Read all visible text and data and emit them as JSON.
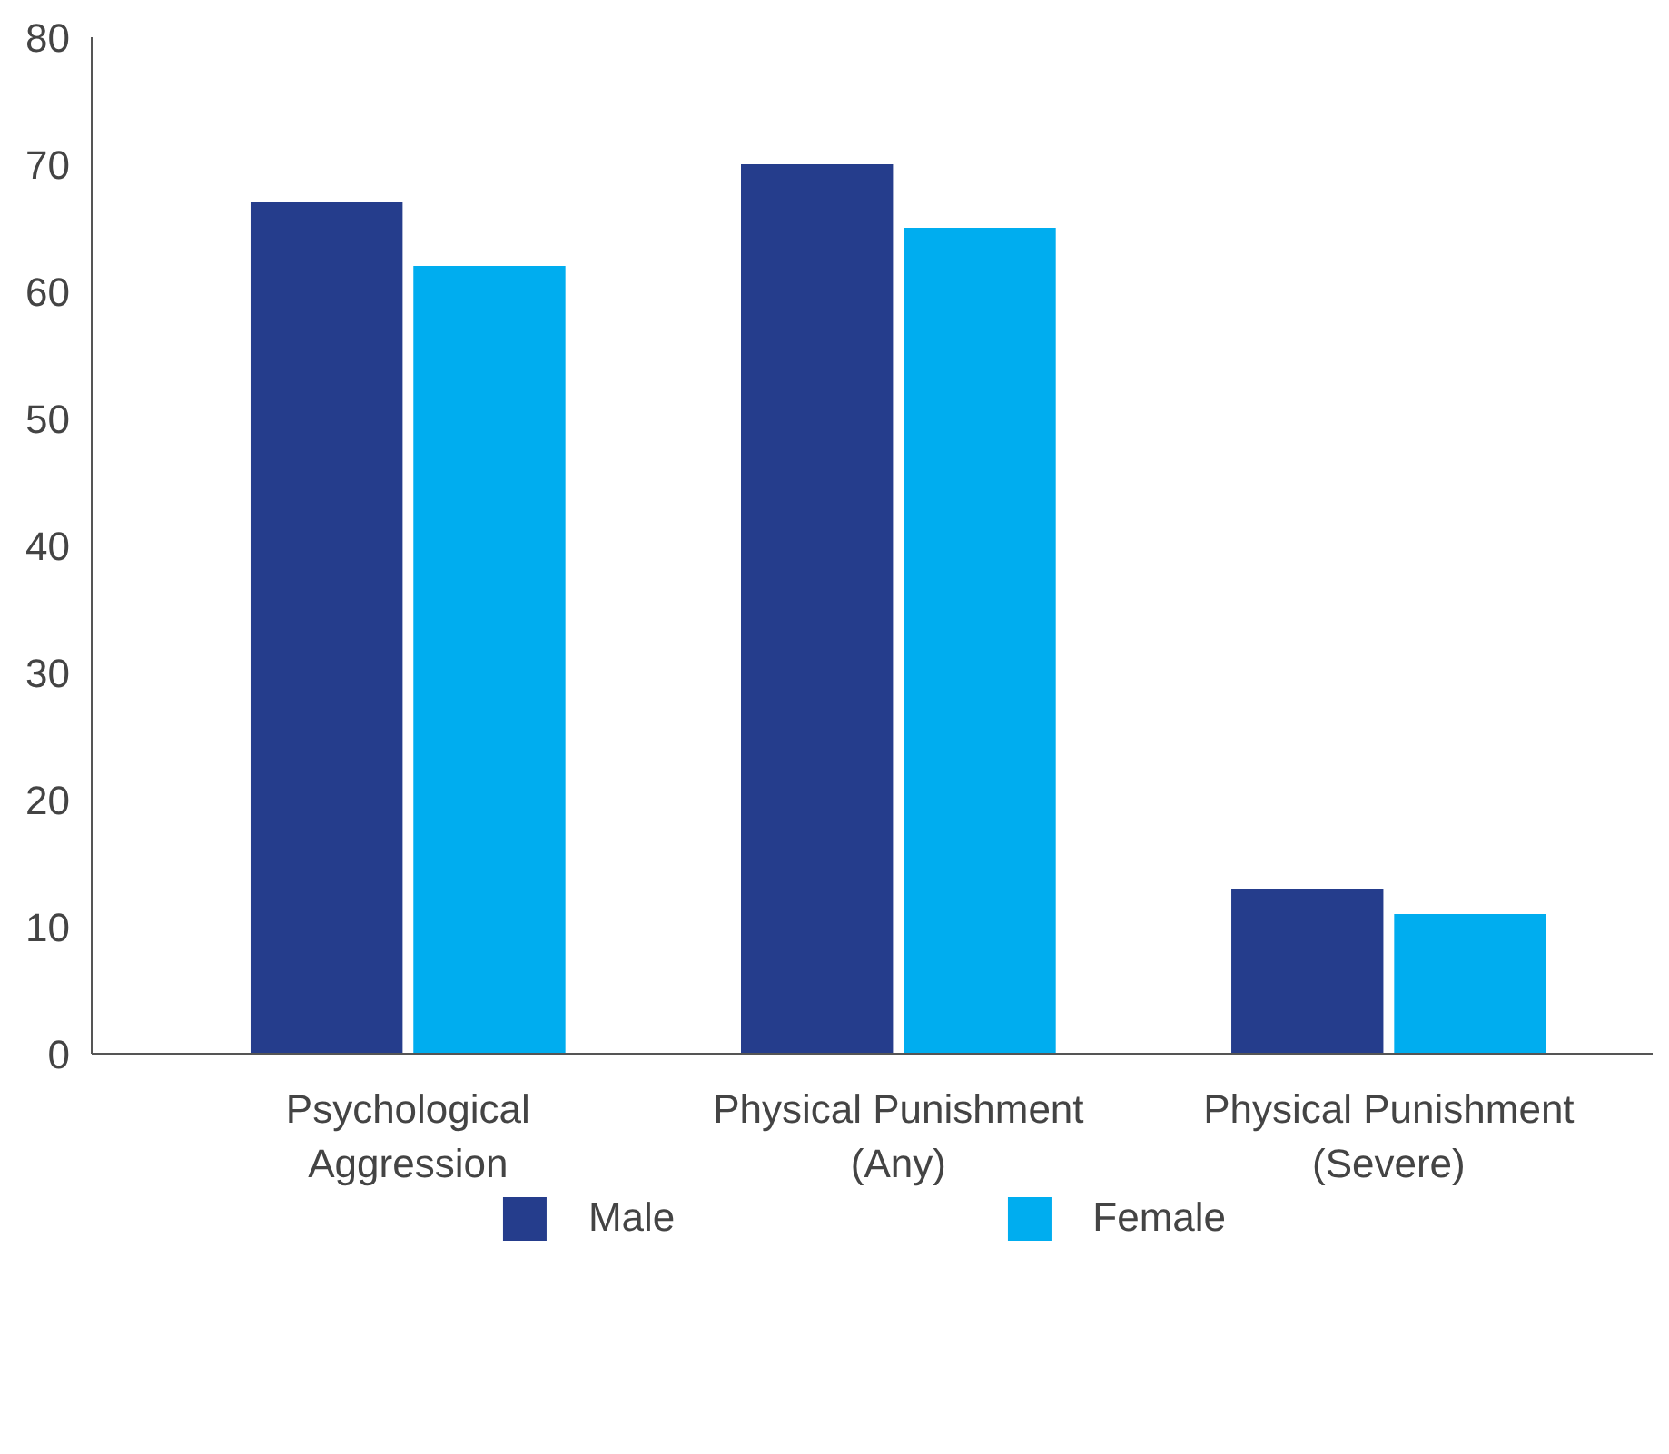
{
  "chart_data": {
    "type": "bar",
    "categories": [
      "Psychological\nAggression",
      "Physical Punishment\n(Any)",
      "Physical Punishment\n(Severe)"
    ],
    "series": [
      {
        "name": "Male",
        "color": "#253d8c",
        "values": [
          67,
          70,
          13
        ]
      },
      {
        "name": "Female",
        "color": "#00adef",
        "values": [
          62,
          65,
          11
        ]
      }
    ],
    "ylim": [
      0,
      80
    ],
    "yticks": [
      0,
      10,
      20,
      30,
      40,
      50,
      60,
      70,
      80
    ],
    "grid": false,
    "legend": "bottom"
  }
}
